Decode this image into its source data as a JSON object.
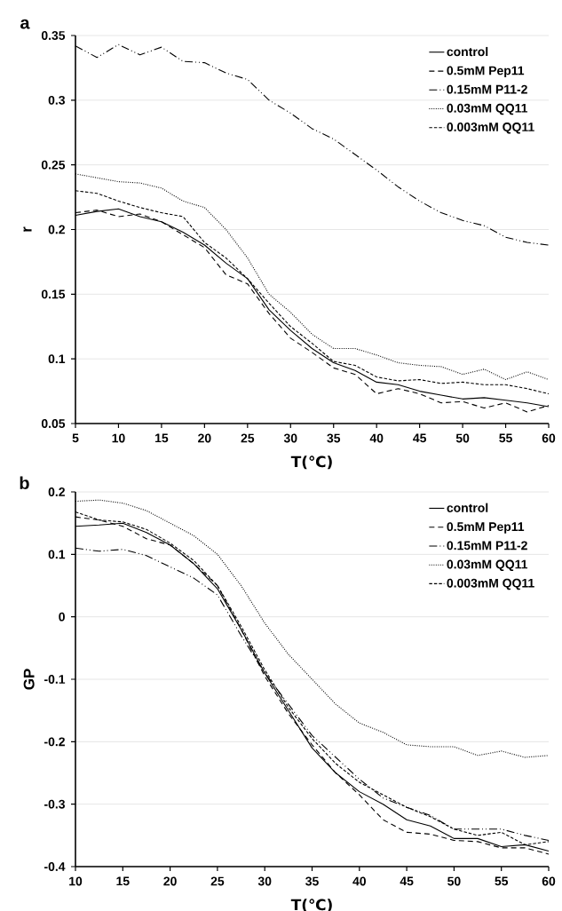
{
  "chart_data": [
    {
      "type": "line",
      "xlabel": "T(℃)",
      "ylabel": "r",
      "annotations": [
        "a"
      ],
      "x": [
        5,
        7.5,
        10,
        12.5,
        15,
        17.5,
        20,
        22.5,
        25,
        27.5,
        30,
        32.5,
        35,
        37.5,
        40,
        42.5,
        45,
        47.5,
        50,
        52.5,
        55,
        57.5,
        60
      ],
      "xlim": [
        5,
        60
      ],
      "xticks": [
        5,
        10,
        15,
        20,
        25,
        30,
        35,
        40,
        45,
        50,
        55,
        60
      ],
      "ylim": [
        0.05,
        0.35
      ],
      "yticks": [
        0.05,
        0.1,
        0.15,
        0.2,
        0.25,
        0.3,
        0.35
      ],
      "grid": "y",
      "legend": "top right",
      "marker": "none",
      "series": [
        {
          "name": "control",
          "color": "#000000",
          "line_style": "solid",
          "values": [
            0.211,
            0.214,
            0.216,
            0.21,
            0.206,
            0.198,
            0.188,
            0.174,
            0.162,
            0.138,
            0.122,
            0.108,
            0.097,
            0.091,
            0.082,
            0.08,
            0.075,
            0.072,
            0.069,
            0.07,
            0.068,
            0.066,
            0.063
          ]
        },
        {
          "name": "0.5mM Pep11",
          "color": "#000000",
          "line_style": "dashed",
          "values": [
            0.213,
            0.215,
            0.21,
            0.212,
            0.206,
            0.196,
            0.186,
            0.165,
            0.158,
            0.135,
            0.116,
            0.105,
            0.093,
            0.088,
            0.073,
            0.077,
            0.073,
            0.066,
            0.067,
            0.062,
            0.066,
            0.059,
            0.064
          ]
        },
        {
          "name": "0.15mM P11-2",
          "color": "#000000",
          "line_style": "dashdot",
          "values": [
            0.342,
            0.333,
            0.343,
            0.335,
            0.341,
            0.33,
            0.329,
            0.321,
            0.316,
            0.3,
            0.29,
            0.278,
            0.27,
            0.258,
            0.246,
            0.233,
            0.222,
            0.213,
            0.207,
            0.203,
            0.194,
            0.19,
            0.188
          ]
        },
        {
          "name": "0.03mM QQ11",
          "color": "#000000",
          "line_style": "dotted",
          "values": [
            0.243,
            0.24,
            0.237,
            0.236,
            0.232,
            0.222,
            0.217,
            0.2,
            0.178,
            0.15,
            0.136,
            0.119,
            0.108,
            0.108,
            0.103,
            0.097,
            0.095,
            0.094,
            0.088,
            0.092,
            0.084,
            0.09,
            0.084
          ]
        },
        {
          "name": "0.003mM QQ11",
          "color": "#000000",
          "line_style": "densely dashed",
          "values": [
            0.23,
            0.228,
            0.222,
            0.217,
            0.213,
            0.21,
            0.19,
            0.178,
            0.162,
            0.143,
            0.125,
            0.112,
            0.098,
            0.095,
            0.086,
            0.083,
            0.084,
            0.081,
            0.082,
            0.08,
            0.08,
            0.077,
            0.073
          ]
        }
      ]
    },
    {
      "type": "line",
      "xlabel": "T(℃)",
      "ylabel": "GP",
      "annotations": [
        "b"
      ],
      "x": [
        10,
        12.5,
        15,
        17.5,
        20,
        22.5,
        25,
        27.5,
        30,
        32.5,
        35,
        37.5,
        40,
        42.5,
        45,
        47.5,
        50,
        52.5,
        55,
        57.5,
        60
      ],
      "xlim": [
        10,
        60
      ],
      "xticks": [
        10,
        15,
        20,
        25,
        30,
        35,
        40,
        45,
        50,
        55,
        60
      ],
      "ylim": [
        -0.4,
        0.2
      ],
      "yticks": [
        -0.4,
        -0.3,
        -0.2,
        -0.1,
        0,
        0.1,
        0.2
      ],
      "grid": "y",
      "legend": "top right",
      "marker": "none",
      "series": [
        {
          "name": "control",
          "color": "#000000",
          "line_style": "solid",
          "values": [
            0.145,
            0.147,
            0.15,
            0.135,
            0.115,
            0.085,
            0.045,
            -0.02,
            -0.09,
            -0.15,
            -0.21,
            -0.25,
            -0.28,
            -0.3,
            -0.325,
            -0.335,
            -0.355,
            -0.355,
            -0.368,
            -0.365,
            -0.375
          ]
        },
        {
          "name": "0.5mM Pep11",
          "color": "#000000",
          "line_style": "dashed",
          "values": [
            0.16,
            0.155,
            0.145,
            0.125,
            0.115,
            0.085,
            0.05,
            -0.02,
            -0.095,
            -0.155,
            -0.205,
            -0.25,
            -0.285,
            -0.325,
            -0.345,
            -0.348,
            -0.358,
            -0.36,
            -0.37,
            -0.37,
            -0.38
          ]
        },
        {
          "name": "0.15mM P11-2",
          "color": "#000000",
          "line_style": "dashdot",
          "values": [
            0.11,
            0.105,
            0.108,
            0.098,
            0.08,
            0.062,
            0.035,
            -0.03,
            -0.09,
            -0.14,
            -0.19,
            -0.225,
            -0.26,
            -0.29,
            -0.305,
            -0.318,
            -0.34,
            -0.34,
            -0.34,
            -0.35,
            -0.358
          ]
        },
        {
          "name": "0.03mM QQ11",
          "color": "#000000",
          "line_style": "dotted",
          "values": [
            0.185,
            0.187,
            0.182,
            0.17,
            0.15,
            0.13,
            0.1,
            0.05,
            -0.01,
            -0.06,
            -0.1,
            -0.14,
            -0.17,
            -0.185,
            -0.205,
            -0.208,
            -0.208,
            -0.222,
            -0.215,
            -0.225,
            -0.222
          ]
        },
        {
          "name": "0.003mM QQ11",
          "color": "#000000",
          "line_style": "densely dashed",
          "values": [
            0.168,
            0.155,
            0.152,
            0.14,
            0.118,
            0.09,
            0.05,
            -0.015,
            -0.085,
            -0.145,
            -0.195,
            -0.235,
            -0.265,
            -0.285,
            -0.305,
            -0.32,
            -0.34,
            -0.35,
            -0.345,
            -0.365,
            -0.36
          ]
        }
      ]
    }
  ]
}
